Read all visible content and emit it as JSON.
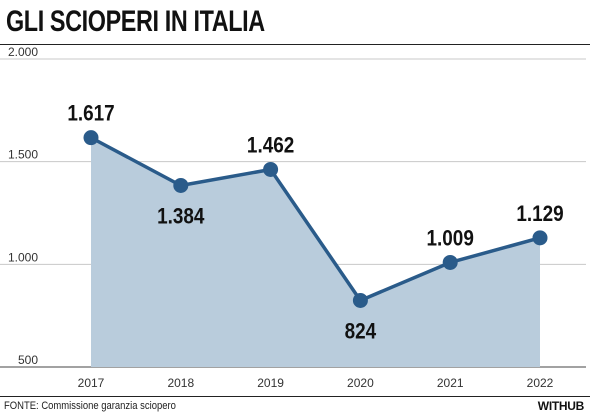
{
  "title": "GLI SCIOPERI IN ITALIA",
  "source": "FONTE: Commissione garanzia sciopero",
  "brand": "WITHUB",
  "colors": {
    "line": "#2a5b8a",
    "area": "#b9ccdc",
    "grid": "#c8c8c8",
    "text": "#111111"
  },
  "chart_data": {
    "type": "area",
    "title": "GLI SCIOPERI IN ITALIA",
    "xlabel": "",
    "ylabel": "",
    "categories": [
      "2017",
      "2018",
      "2019",
      "2020",
      "2021",
      "2022"
    ],
    "values": [
      1617,
      1384,
      1462,
      824,
      1009,
      1129
    ],
    "value_labels": [
      "1.617",
      "1.384",
      "1.462",
      "824",
      "1.009",
      "1.129"
    ],
    "ylim": [
      500,
      2000
    ],
    "yticks": [
      500,
      1000,
      1500,
      2000
    ],
    "ytick_labels": [
      "500",
      "1.000",
      "1.500",
      "2.000"
    ],
    "grid": "horizontal",
    "legend": "none"
  }
}
